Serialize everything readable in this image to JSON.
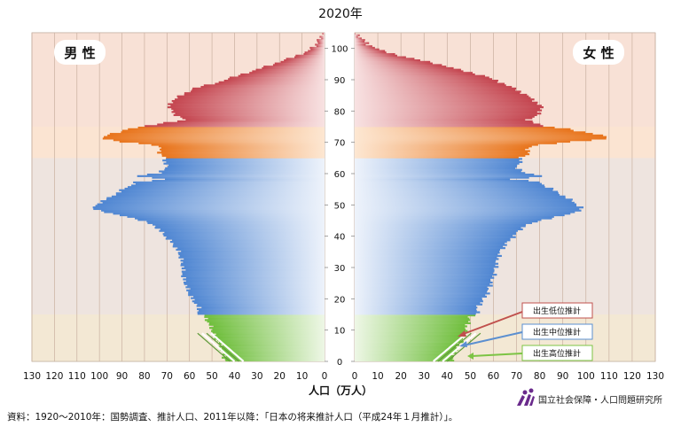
{
  "chart_data": {
    "type": "population-pyramid",
    "title": "2020年",
    "left_label": "男 性",
    "right_label": "女 性",
    "xlabel": "人口（万人）",
    "x_ticks": [
      130,
      120,
      110,
      100,
      90,
      80,
      70,
      60,
      50,
      40,
      30,
      20,
      10,
      0
    ],
    "age_ticks": [
      0,
      10,
      20,
      30,
      40,
      50,
      60,
      70,
      80,
      90,
      100
    ],
    "xlim": [
      0,
      130
    ],
    "age_range": [
      0,
      105
    ],
    "colors": {
      "under15": "#7cc444",
      "age15to64": "#5b93d6",
      "age65to74": "#ec7c24",
      "age75plus": "#c8545c",
      "background": "#fbe3d3",
      "grid": "#c9b0a0"
    },
    "male_age_points": [
      0,
      4,
      6,
      8,
      10,
      14,
      15,
      17,
      19,
      21,
      23,
      25,
      27,
      30,
      33,
      35,
      37,
      40,
      43,
      45,
      46,
      47,
      48,
      49,
      50,
      52,
      54,
      55,
      56,
      57,
      58,
      59,
      60,
      62,
      64,
      65,
      66,
      68,
      69,
      70,
      71,
      72,
      73,
      74,
      75,
      77,
      79,
      81,
      83,
      85,
      87,
      89,
      91,
      93,
      95,
      97,
      99,
      101,
      103,
      105
    ],
    "male_values": [
      44,
      46,
      47,
      49,
      50,
      53,
      56,
      56,
      58,
      60,
      61,
      62,
      63,
      63,
      64,
      65,
      67,
      71,
      75,
      82,
      87,
      95,
      100,
      103,
      101,
      96,
      91,
      89,
      86,
      84,
      70,
      84,
      73,
      70,
      71,
      71,
      73,
      73,
      76,
      90,
      99,
      97,
      91,
      88,
      79,
      62,
      67,
      69,
      68,
      63,
      58,
      47,
      39,
      30,
      22,
      14,
      7,
      4,
      2,
      0.3
    ],
    "female_age_points": [
      0,
      4,
      6,
      8,
      10,
      14,
      15,
      17,
      19,
      21,
      23,
      25,
      27,
      30,
      33,
      35,
      37,
      40,
      43,
      45,
      46,
      47,
      48,
      49,
      50,
      52,
      54,
      55,
      56,
      57,
      58,
      59,
      60,
      62,
      64,
      65,
      66,
      68,
      69,
      70,
      71,
      72,
      73,
      74,
      75,
      77,
      79,
      81,
      83,
      85,
      87,
      89,
      91,
      93,
      95,
      97,
      99,
      101,
      103,
      105
    ],
    "female_values": [
      42,
      44,
      46,
      47,
      48,
      50,
      53,
      53,
      55,
      57,
      58,
      59,
      60,
      61,
      62,
      63,
      65,
      69,
      73,
      81,
      87,
      94,
      97,
      98,
      96,
      92,
      87,
      85,
      82,
      80,
      68,
      82,
      73,
      70,
      72,
      72,
      75,
      75,
      79,
      94,
      110,
      107,
      99,
      93,
      81,
      75,
      80,
      81,
      78,
      74,
      69,
      63,
      56,
      45,
      35,
      22,
      12,
      6,
      3,
      0.5
    ],
    "annotations": [
      "出生低位推計",
      "出生中位推計",
      "出生高位推計"
    ]
  },
  "logo_text": "国立社会保障・人口問題研究所",
  "source_note": "資料：1920～2010年：国勢調査、推計人口、2011年以降：「日本の将来推計人口（平成24年１月推計）」。"
}
